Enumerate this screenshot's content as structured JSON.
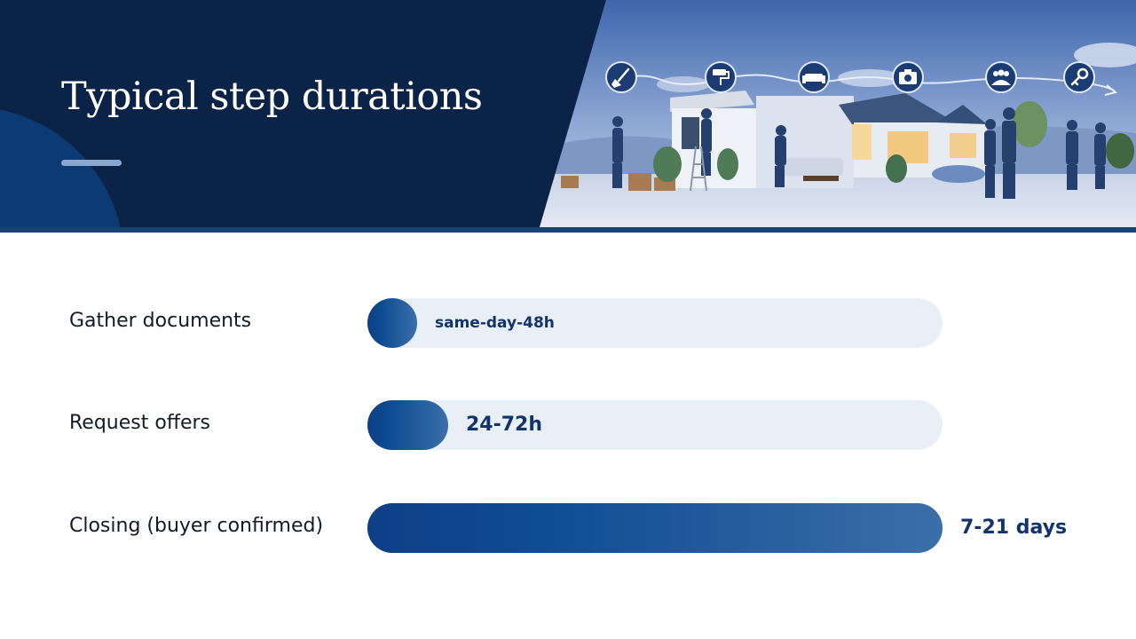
{
  "header": {
    "title": "Typical step durations"
  },
  "colors": {
    "header_bg": "#0b2347",
    "bar": "#0f4c93",
    "track": "#e9eff7",
    "value_text": "#12346a"
  },
  "illustration_icons": [
    "broom-icon",
    "paint-roller-icon",
    "sofa-icon",
    "camera-icon",
    "people-icon",
    "key-icon"
  ],
  "chart_data": {
    "type": "bar",
    "orientation": "horizontal",
    "categories": [
      "Gather documents",
      "Request offers",
      "Closing (buyer confirmed)"
    ],
    "value_labels": [
      "same-day-48h",
      "24-72h",
      "7-21 days"
    ],
    "values": [
      0.085,
      0.14,
      1.0
    ],
    "value_unit": "fraction of longest bar"
  }
}
